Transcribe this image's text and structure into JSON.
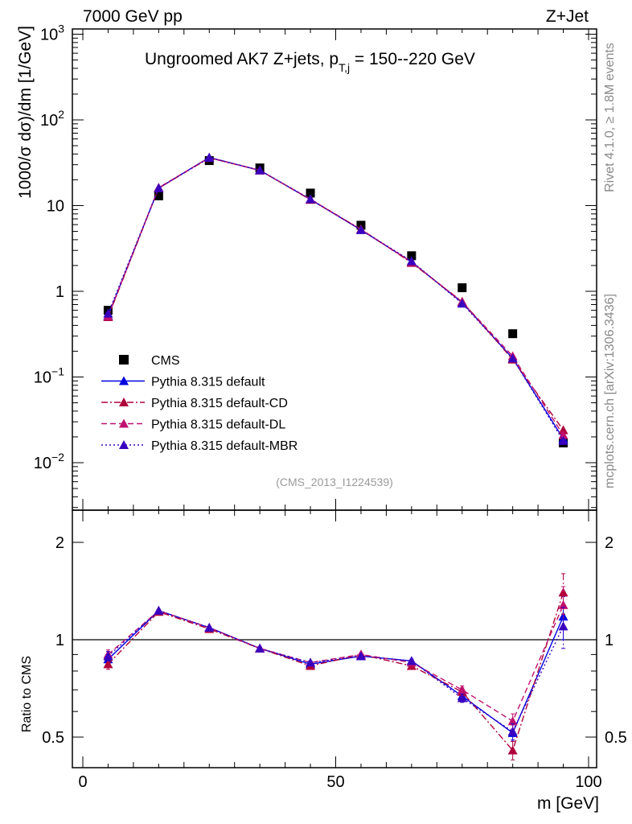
{
  "header": {
    "energy_label": "7000 GeV pp",
    "process_label": "Z+Jet"
  },
  "side_labels": {
    "rivet": "Rivet 4.1.0, ≥ 1.8M events",
    "mcplots": "mcplots.cern.ch [arXiv:1306.3436]"
  },
  "chart_data": [
    {
      "type": "scatter",
      "title": "Ungroomed AK7 Z+jets, p",
      "title_sub": "T,j",
      "title_rest": " = 150--220 GeV",
      "analysis_id": "(CMS_2013_I1224539)",
      "ylabel": "1000/σ  dσ)/dm [1/GeV]",
      "xlabel": "",
      "yscale": "log",
      "xlim": [
        -1,
        100
      ],
      "ylim": [
        0.003,
        1200
      ],
      "y_ticks": [
        {
          "base": "10",
          "exp": "3",
          "value": 1000
        },
        {
          "base": "10",
          "exp": "2",
          "value": 100
        },
        {
          "base": "10",
          "exp": "",
          "value": 10
        },
        {
          "base": "1",
          "exp": "",
          "value": 1
        },
        {
          "base": "10",
          "exp": "−1",
          "value": 0.1
        },
        {
          "base": "10",
          "exp": "−2",
          "value": 0.01
        }
      ],
      "x": [
        5,
        15,
        25,
        35,
        45,
        55,
        65,
        75,
        85,
        95
      ],
      "series": [
        {
          "name": "CMS",
          "color": "#000000",
          "style": "marker",
          "marker": "square",
          "values": [
            0.6,
            13.0,
            33.5,
            27.5,
            14.0,
            5.9,
            2.6,
            1.1,
            0.32,
            0.017
          ]
        },
        {
          "name": "Pythia 8.315 default",
          "color": "#0000e0",
          "style": "solid",
          "marker": "triangle",
          "values": [
            0.52,
            16.0,
            36.5,
            25.8,
            11.8,
            5.2,
            2.2,
            0.74,
            0.165,
            0.019
          ]
        },
        {
          "name": "Pythia 8.315 default-CD",
          "color": "#b0003a",
          "style": "dashdot",
          "marker": "triangle",
          "values": [
            0.5,
            16.0,
            36.0,
            25.9,
            11.7,
            5.3,
            2.15,
            0.76,
            0.16,
            0.024
          ]
        },
        {
          "name": "Pythia 8.315 default-DL",
          "color": "#c0106e",
          "style": "dashed",
          "marker": "triangle",
          "values": [
            0.51,
            16.2,
            36.3,
            25.7,
            11.9,
            5.25,
            2.2,
            0.75,
            0.175,
            0.021
          ]
        },
        {
          "name": "Pythia 8.315 default-MBR",
          "color": "#3a00c0",
          "style": "dotted",
          "marker": "triangle",
          "values": [
            0.55,
            16.0,
            36.2,
            25.8,
            11.9,
            5.2,
            2.25,
            0.72,
            0.165,
            0.018
          ]
        }
      ]
    },
    {
      "type": "line",
      "title": "",
      "ylabel": "Ratio to CMS",
      "xlabel": "m [GeV]",
      "xlim": [
        -1,
        100
      ],
      "ylim": [
        0.38,
        2.3
      ],
      "y_tick_labels": [
        "2",
        "1",
        "0.5"
      ],
      "y_tick_values": [
        2,
        1,
        0.5
      ],
      "x_tick_labels": [
        "0",
        "50",
        "100"
      ],
      "x_tick_values": [
        0,
        50,
        100
      ],
      "reference_line": 1,
      "x": [
        5,
        15,
        25,
        35,
        45,
        55,
        65,
        75,
        85,
        95
      ],
      "series": [
        {
          "name": "Pythia 8.315 default",
          "color": "#0000e0",
          "style": "solid",
          "values": [
            0.87,
            1.23,
            1.09,
            0.94,
            0.84,
            0.89,
            0.86,
            0.67,
            0.515,
            1.18
          ],
          "errors": [
            0.03,
            0.01,
            0.01,
            0.01,
            0.01,
            0.01,
            0.01,
            0.02,
            0.03,
            0.18
          ]
        },
        {
          "name": "Pythia 8.315 default-CD",
          "color": "#b0003a",
          "style": "dashdot",
          "values": [
            0.84,
            1.22,
            1.08,
            0.94,
            0.83,
            0.9,
            0.83,
            0.69,
            0.455,
            1.4
          ],
          "errors": [
            0.03,
            0.01,
            0.01,
            0.01,
            0.01,
            0.01,
            0.01,
            0.02,
            0.03,
            0.2
          ]
        },
        {
          "name": "Pythia 8.315 default-DL",
          "color": "#c0106e",
          "style": "dashed",
          "values": [
            0.9,
            1.23,
            1.09,
            0.94,
            0.85,
            0.9,
            0.85,
            0.7,
            0.56,
            1.28
          ],
          "errors": [
            0.03,
            0.01,
            0.01,
            0.01,
            0.01,
            0.01,
            0.01,
            0.02,
            0.03,
            0.18
          ]
        },
        {
          "name": "Pythia 8.315 default-MBR",
          "color": "#3a00c0",
          "style": "dotted",
          "values": [
            0.89,
            1.23,
            1.09,
            0.94,
            0.85,
            0.89,
            0.86,
            0.66,
            0.52,
            1.1
          ],
          "errors": [
            0.03,
            0.01,
            0.01,
            0.01,
            0.01,
            0.01,
            0.01,
            0.02,
            0.03,
            0.16
          ]
        }
      ]
    }
  ]
}
